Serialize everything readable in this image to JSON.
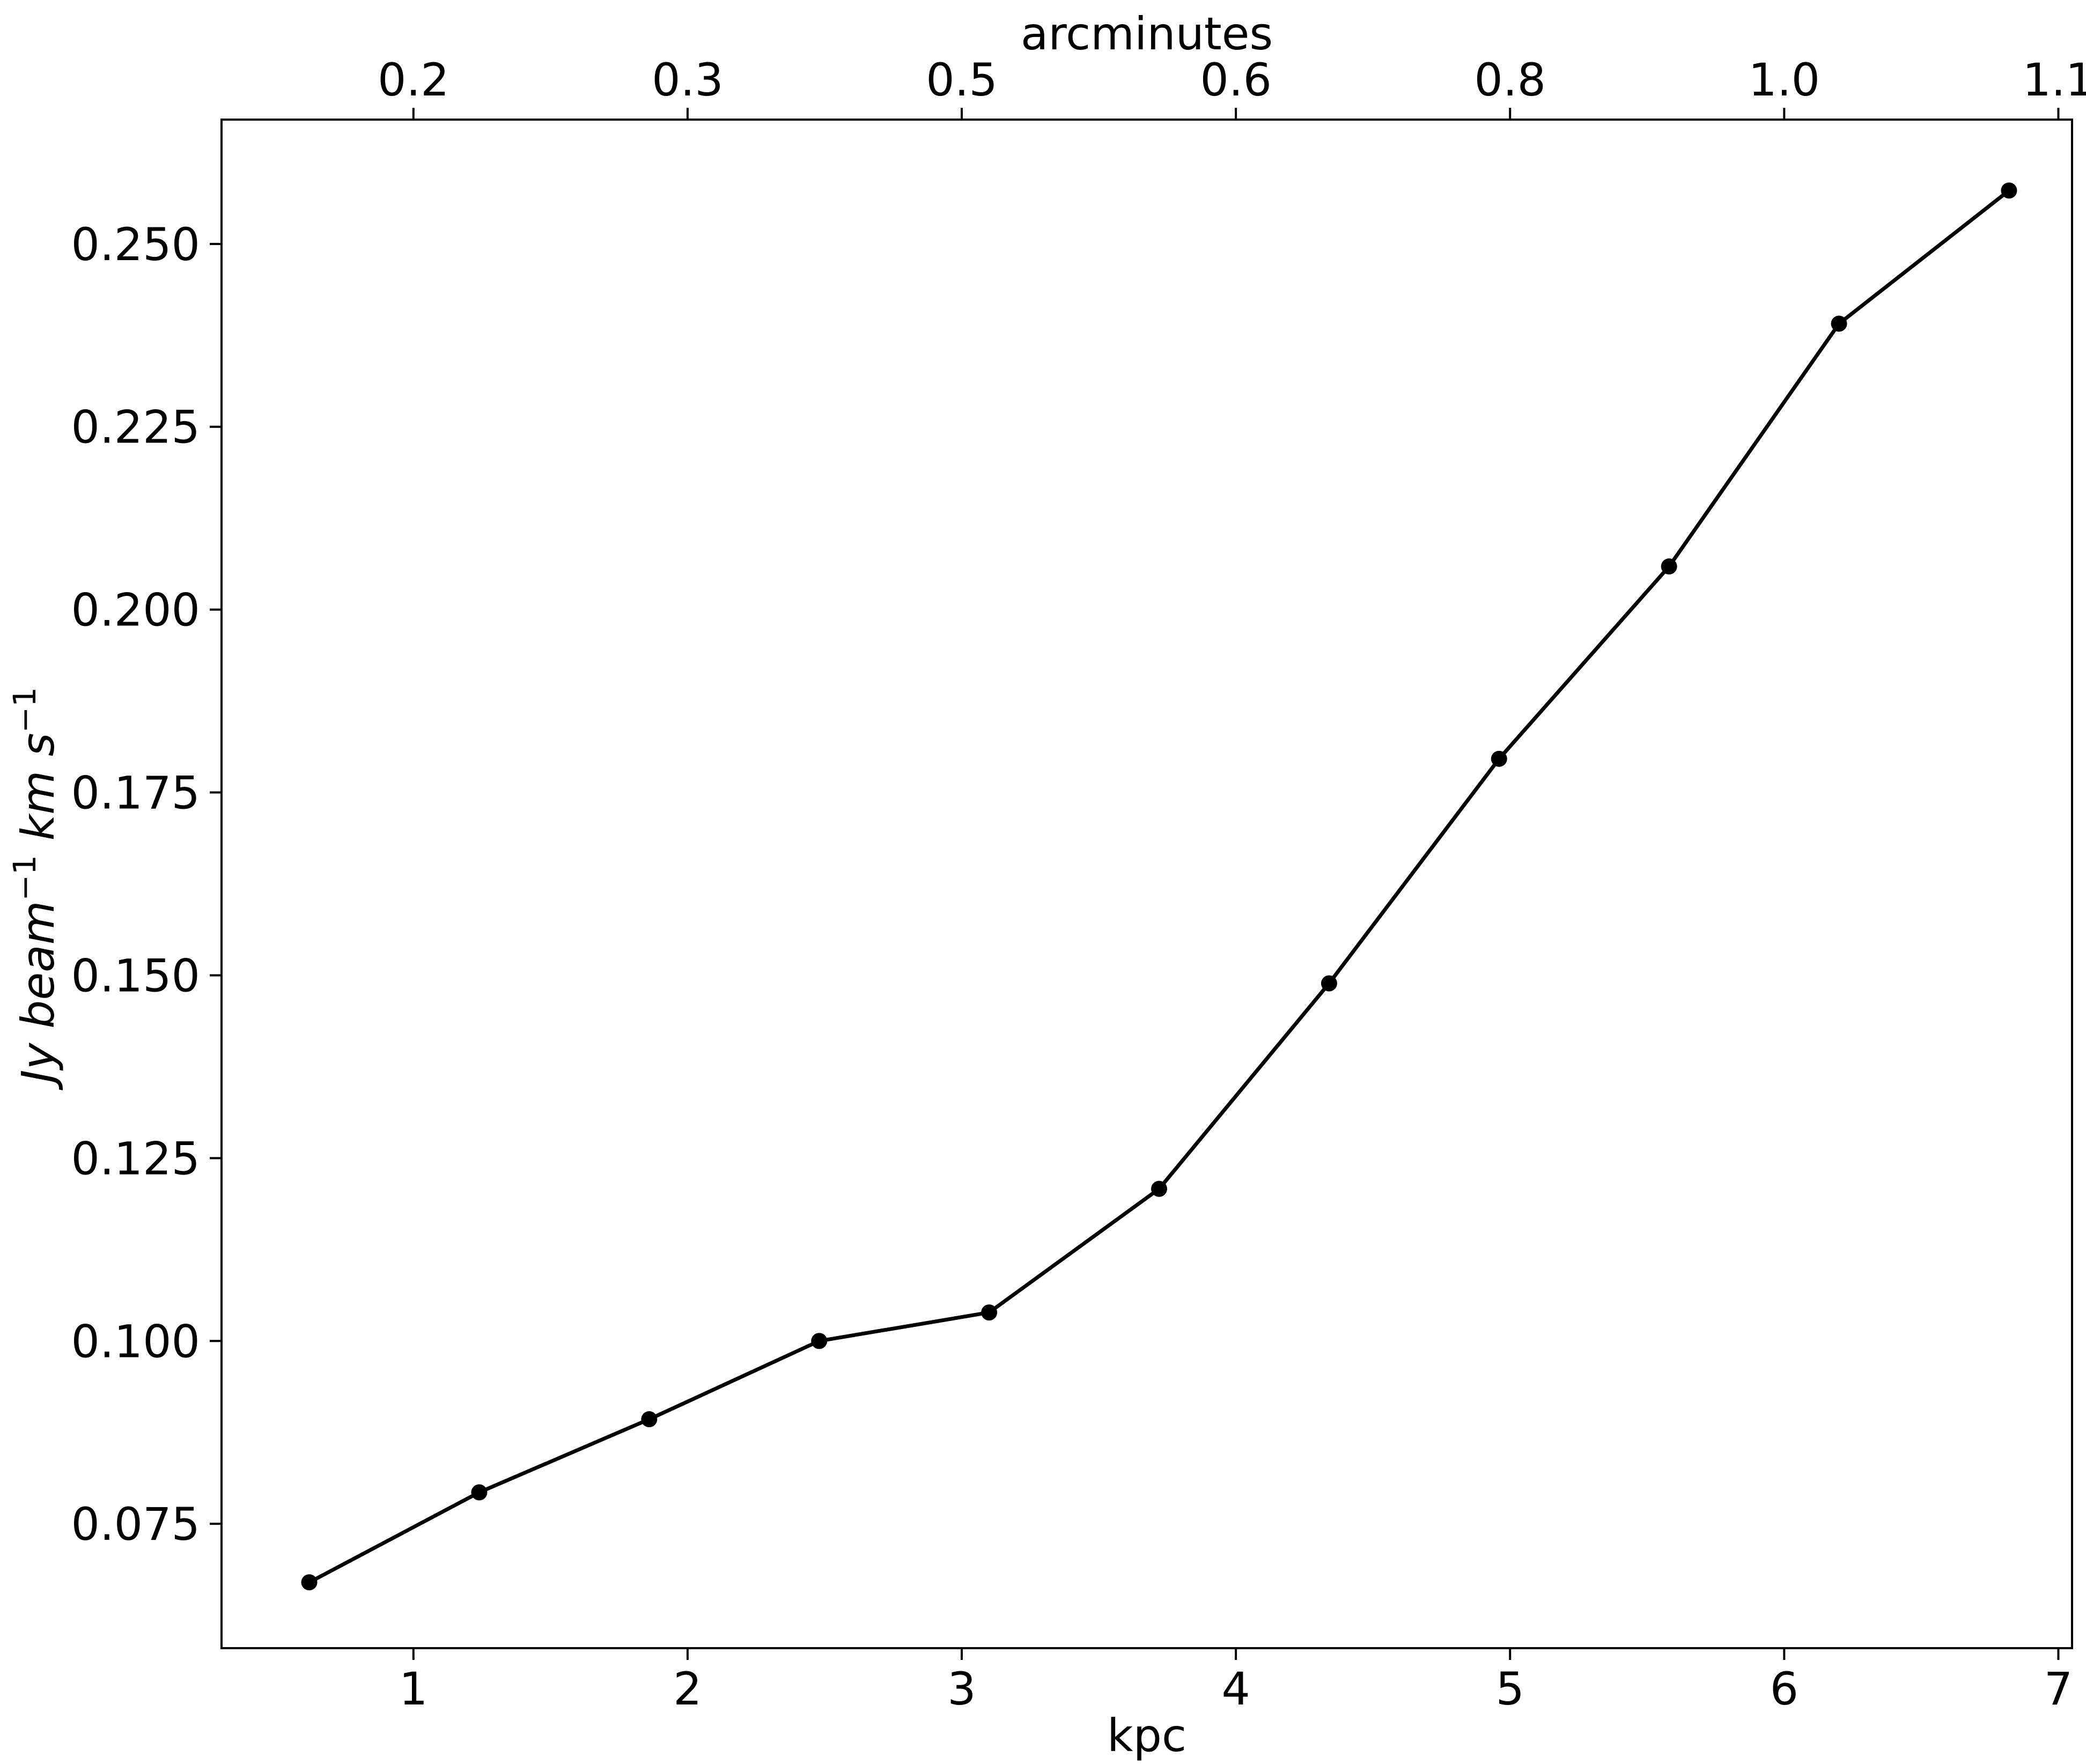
{
  "chart_data": {
    "type": "line",
    "title": "",
    "xlabel": "kpc",
    "x2label": "arcminutes",
    "ylabel": {
      "base1": "Jy beam",
      "sup1": "−1",
      "base2": " km s",
      "sup2": "−1"
    },
    "xlim": [
      0.3,
      7.05
    ],
    "ylim": [
      0.058,
      0.267
    ],
    "xticks": [
      1,
      2,
      3,
      4,
      5,
      6,
      7
    ],
    "xtick_labels": [
      "1",
      "2",
      "3",
      "4",
      "5",
      "6",
      "7"
    ],
    "x2ticks": [
      1,
      2,
      3,
      4,
      5,
      6,
      7
    ],
    "x2tick_labels": [
      "0.2",
      "0.3",
      "0.5",
      "0.6",
      "0.8",
      "1.0",
      "1.1"
    ],
    "yticks": [
      0.075,
      0.1,
      0.125,
      0.15,
      0.175,
      0.2,
      0.225,
      0.25
    ],
    "ytick_labels": [
      "0.075",
      "0.100",
      "0.125",
      "0.150",
      "0.175",
      "0.200",
      "0.225",
      "0.250"
    ],
    "grid": false,
    "series": [
      {
        "color": "#000000",
        "marker": "circle",
        "x": [
          0.62,
          1.24,
          1.86,
          2.48,
          3.1,
          3.72,
          4.34,
          4.96,
          5.58,
          6.2,
          6.82
        ],
        "y": [
          0.067,
          0.0793,
          0.0893,
          0.1,
          0.1039,
          0.1208,
          0.1489,
          0.1796,
          0.2059,
          0.2391,
          0.2573
        ]
      }
    ]
  }
}
